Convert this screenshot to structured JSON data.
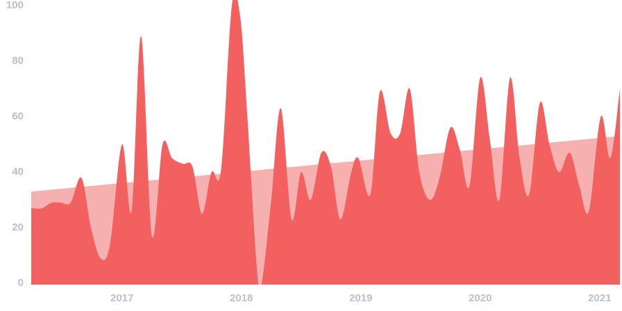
{
  "chart_data": {
    "type": "area",
    "xlim": [
      2016.24,
      2021.17
    ],
    "xticks": [
      2017,
      2018,
      2019,
      2020,
      2021
    ],
    "ylim": [
      0,
      100
    ],
    "yticks": [
      0,
      20,
      40,
      60,
      80,
      100
    ],
    "grid": false,
    "series": [
      {
        "color": "#f7b0b0",
        "x": [
          2016.24,
          2021.17
        ],
        "values": [
          33,
          53
        ]
      },
      {
        "color": "#f26060",
        "x": [
          2016.24,
          2016.33,
          2016.41,
          2016.49,
          2016.57,
          2016.66,
          2016.74,
          2016.82,
          2016.9,
          2017.0,
          2017.08,
          2017.16,
          2017.25,
          2017.34,
          2017.42,
          2017.51,
          2017.59,
          2017.67,
          2017.75,
          2017.83,
          2017.92,
          2017.99,
          2018.05,
          2018.13,
          2018.17,
          2018.25,
          2018.33,
          2018.42,
          2018.5,
          2018.58,
          2018.67,
          2018.75,
          2018.83,
          2018.92,
          2018.98,
          2019.08,
          2019.16,
          2019.25,
          2019.33,
          2019.41,
          2019.49,
          2019.58,
          2019.66,
          2019.75,
          2019.83,
          2019.91,
          2020.0,
          2020.08,
          2020.16,
          2020.25,
          2020.33,
          2020.41,
          2020.5,
          2020.58,
          2020.66,
          2020.75,
          2020.83,
          2020.91,
          2021.01,
          2021.09,
          2021.17
        ],
        "values": [
          27,
          27,
          29,
          29,
          29,
          38,
          20,
          9,
          14,
          50,
          26,
          89,
          17,
          50,
          45,
          43,
          42,
          25,
          40,
          41,
          100,
          96,
          60,
          5,
          0,
          30,
          63,
          23,
          40,
          30,
          47,
          42,
          23,
          40,
          45,
          32,
          69,
          54,
          54,
          70,
          40,
          30,
          38,
          56,
          48,
          35,
          74,
          52,
          30,
          74,
          45,
          32,
          65,
          50,
          40,
          47,
          35,
          26,
          60,
          45,
          70
        ]
      }
    ]
  }
}
